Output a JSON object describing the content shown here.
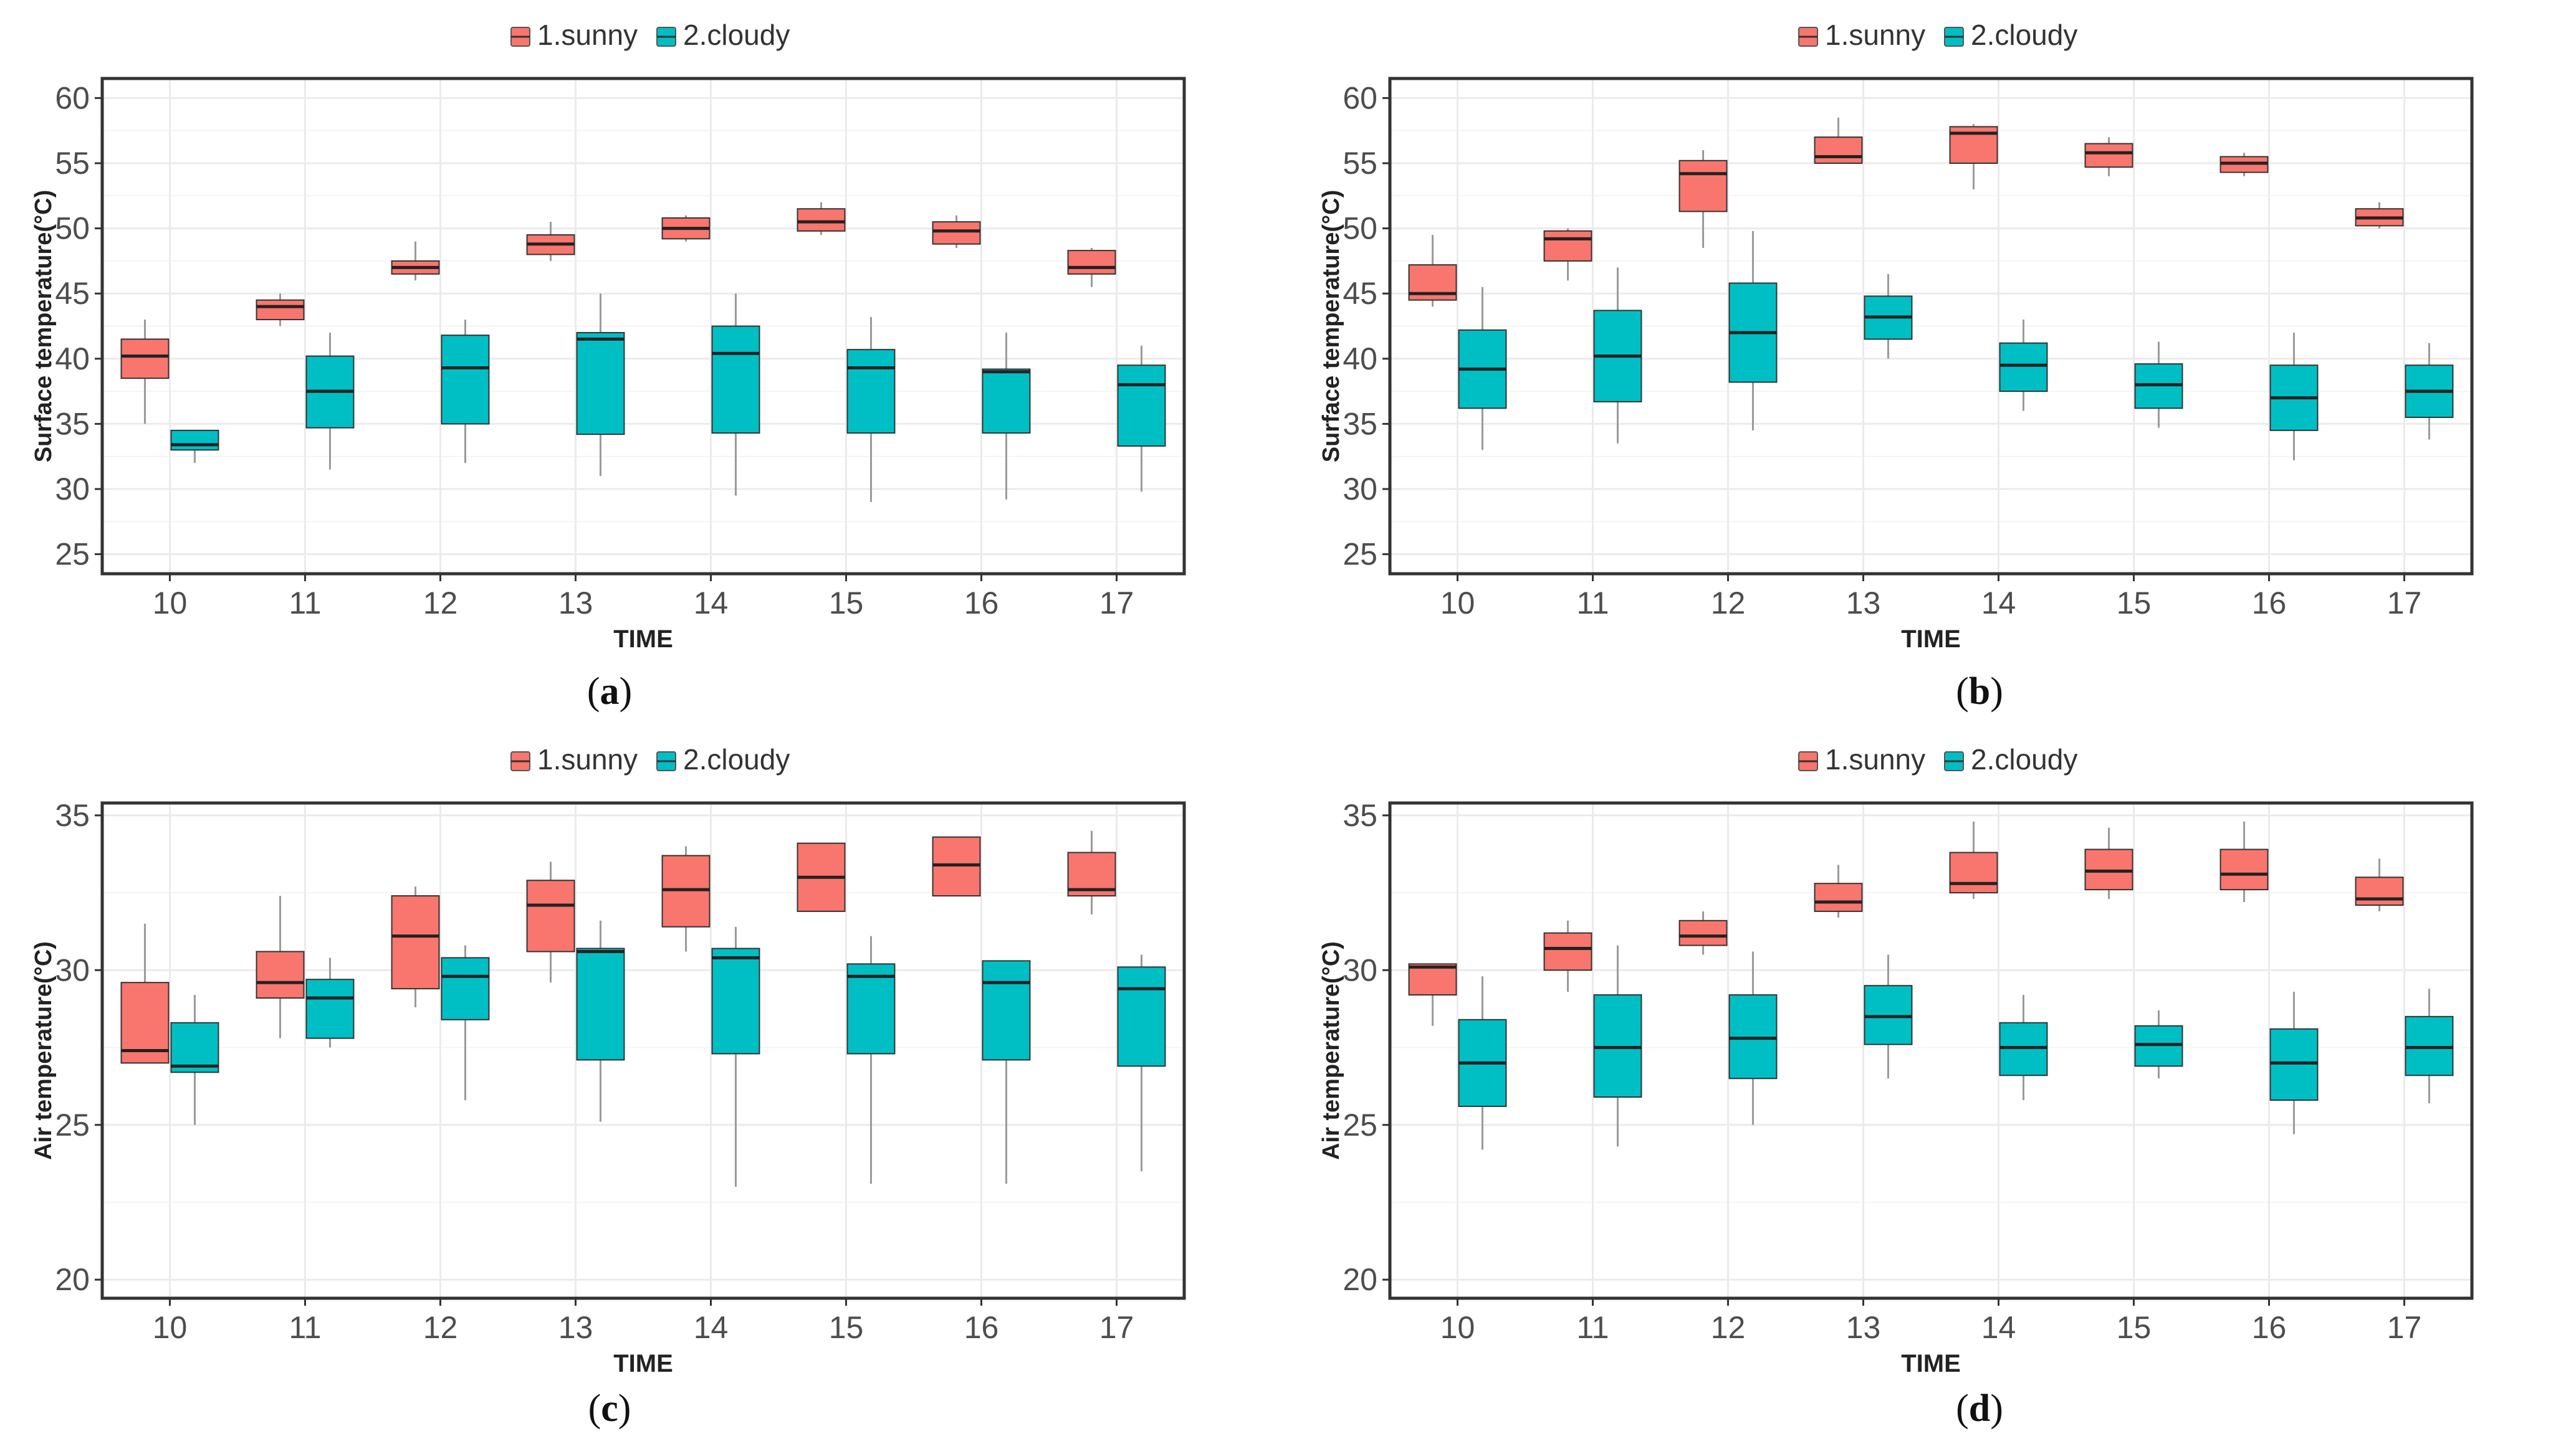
{
  "colors": {
    "sunny": "#F8766D",
    "cloudy": "#00BFC4",
    "grid": "#ebebeb",
    "frame": "#333333",
    "whisker": "#9a9a9a"
  },
  "legend": {
    "items": [
      "1.sunny",
      "2.cloudy"
    ]
  },
  "chart_data": [
    {
      "type": "box",
      "label": "a",
      "xlabel": "TIME",
      "ylabel": "Surface temperature(°C)",
      "ylim": [
        23.5,
        61.5
      ],
      "yticks": [
        25,
        30,
        35,
        40,
        45,
        50,
        55,
        60
      ],
      "categories": [
        "10",
        "11",
        "12",
        "13",
        "14",
        "15",
        "16",
        "17"
      ],
      "series": [
        {
          "name": "1.sunny",
          "boxes": [
            [
              35,
              38.5,
              40.2,
              41.5,
              43
            ],
            [
              42.5,
              43,
              44,
              44.5,
              45
            ],
            [
              46,
              46.5,
              47,
              47.5,
              49
            ],
            [
              47.5,
              48,
              48.8,
              49.5,
              50.5
            ],
            [
              49,
              49.2,
              50,
              50.8,
              51
            ],
            [
              49.5,
              49.8,
              50.5,
              51.5,
              52
            ],
            [
              48.5,
              48.8,
              49.8,
              50.5,
              51
            ],
            [
              45.5,
              46.5,
              47,
              48.3,
              48.5
            ]
          ]
        },
        {
          "name": "2.cloudy",
          "boxes": [
            [
              32,
              33,
              33.4,
              34.5,
              34.5
            ],
            [
              31.5,
              34.7,
              37.5,
              40.2,
              42
            ],
            [
              32,
              35,
              39.3,
              41.8,
              43
            ],
            [
              31,
              34.2,
              41.5,
              42,
              45
            ],
            [
              29.5,
              34.3,
              40.4,
              42.5,
              45
            ],
            [
              29,
              34.3,
              39.3,
              40.7,
              43.2
            ],
            [
              29.2,
              34.3,
              39,
              39.2,
              42
            ],
            [
              29.8,
              33.3,
              38,
              39.5,
              41
            ]
          ]
        }
      ]
    },
    {
      "type": "box",
      "label": "b",
      "xlabel": "TIME",
      "ylabel": "Surface temperature(°C)",
      "ylim": [
        23.5,
        61.5
      ],
      "yticks": [
        25,
        30,
        35,
        40,
        45,
        50,
        55,
        60
      ],
      "categories": [
        "10",
        "11",
        "12",
        "13",
        "14",
        "15",
        "16",
        "17"
      ],
      "series": [
        {
          "name": "1.sunny",
          "boxes": [
            [
              44,
              44.5,
              45,
              47.2,
              49.5
            ],
            [
              46,
              47.5,
              49.2,
              49.8,
              50
            ],
            [
              48.5,
              51.3,
              54.2,
              55.2,
              56
            ],
            [
              55,
              55,
              55.5,
              57,
              58.5
            ],
            [
              53,
              55,
              57.3,
              57.8,
              58
            ],
            [
              54,
              54.7,
              55.8,
              56.5,
              57
            ],
            [
              54,
              54.3,
              55,
              55.5,
              55.8
            ],
            [
              50,
              50.2,
              50.8,
              51.5,
              52
            ]
          ]
        },
        {
          "name": "2.cloudy",
          "boxes": [
            [
              33,
              36.2,
              39.2,
              42.2,
              45.5
            ],
            [
              33.5,
              36.7,
              40.2,
              43.7,
              47
            ],
            [
              34.5,
              38.2,
              42,
              45.8,
              49.8
            ],
            [
              40,
              41.5,
              43.2,
              44.8,
              46.5
            ],
            [
              36,
              37.5,
              39.5,
              41.2,
              43
            ],
            [
              34.7,
              36.2,
              38,
              39.6,
              41.3
            ],
            [
              32.2,
              34.5,
              37,
              39.5,
              42
            ],
            [
              33.8,
              35.5,
              37.5,
              39.5,
              41.2
            ]
          ]
        }
      ]
    },
    {
      "type": "box",
      "label": "c",
      "xlabel": "TIME",
      "ylabel": "Air temperature(°C)",
      "ylim": [
        19.4,
        35.4
      ],
      "yticks": [
        20,
        25,
        30,
        35
      ],
      "categories": [
        "10",
        "11",
        "12",
        "13",
        "14",
        "15",
        "16",
        "17"
      ],
      "series": [
        {
          "name": "1.sunny",
          "boxes": [
            [
              27,
              27,
              27.4,
              29.6,
              31.5
            ],
            [
              27.8,
              29.1,
              29.6,
              30.6,
              32.4
            ],
            [
              28.8,
              29.4,
              31.1,
              32.4,
              32.7
            ],
            [
              29.6,
              30.6,
              32.1,
              32.9,
              33.5
            ],
            [
              30.6,
              31.4,
              32.6,
              33.7,
              34
            ],
            [
              31.9,
              31.9,
              33,
              34.1,
              34.1
            ],
            [
              32.4,
              32.4,
              33.4,
              34.3,
              34.3
            ],
            [
              31.8,
              32.4,
              32.6,
              33.8,
              34.5
            ]
          ]
        },
        {
          "name": "2.cloudy",
          "boxes": [
            [
              25,
              26.7,
              26.9,
              28.3,
              29.2
            ],
            [
              27.5,
              27.8,
              29.1,
              29.7,
              30.4
            ],
            [
              25.8,
              28.4,
              29.8,
              30.4,
              30.8
            ],
            [
              25.1,
              27.1,
              30.6,
              30.7,
              31.6
            ],
            [
              23,
              27.3,
              30.4,
              30.7,
              31.4
            ],
            [
              23.1,
              27.3,
              29.8,
              30.2,
              31.1
            ],
            [
              23.1,
              27.1,
              29.6,
              30.3,
              30.3
            ],
            [
              23.5,
              26.9,
              29.4,
              30.1,
              30.5
            ]
          ]
        }
      ]
    },
    {
      "type": "box",
      "label": "d",
      "xlabel": "TIME",
      "ylabel": "Air temperature(°C)",
      "ylim": [
        19.4,
        35.4
      ],
      "yticks": [
        20,
        25,
        30,
        35
      ],
      "categories": [
        "10",
        "11",
        "12",
        "13",
        "14",
        "15",
        "16",
        "17"
      ],
      "series": [
        {
          "name": "1.sunny",
          "boxes": [
            [
              28.2,
              29.2,
              30.1,
              30.2,
              30.2
            ],
            [
              29.3,
              30,
              30.7,
              31.2,
              31.6
            ],
            [
              30.5,
              30.8,
              31.1,
              31.6,
              31.9
            ],
            [
              31.7,
              31.9,
              32.2,
              32.8,
              33.4
            ],
            [
              32.3,
              32.5,
              32.8,
              33.8,
              34.8
            ],
            [
              32.3,
              32.6,
              33.2,
              33.9,
              34.6
            ],
            [
              32.2,
              32.6,
              33.1,
              33.9,
              34.8
            ],
            [
              31.9,
              32.1,
              32.3,
              33,
              33.6
            ]
          ]
        },
        {
          "name": "2.cloudy",
          "boxes": [
            [
              24.2,
              25.6,
              27,
              28.4,
              29.8
            ],
            [
              24.3,
              25.9,
              27.5,
              29.2,
              30.8
            ],
            [
              25,
              26.5,
              27.8,
              29.2,
              30.6
            ],
            [
              26.5,
              27.6,
              28.5,
              29.5,
              30.5
            ],
            [
              25.8,
              26.6,
              27.5,
              28.3,
              29.2
            ],
            [
              26.5,
              26.9,
              27.6,
              28.2,
              28.7
            ],
            [
              24.7,
              25.8,
              27,
              28.1,
              29.3
            ],
            [
              25.7,
              26.6,
              27.5,
              28.5,
              29.4
            ]
          ]
        }
      ]
    }
  ]
}
